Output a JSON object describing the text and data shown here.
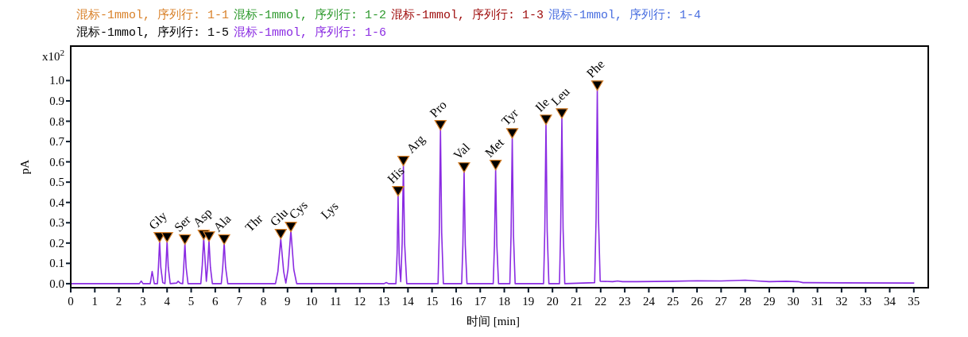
{
  "chart_data": {
    "type": "line",
    "xlabel": "时间 [min]",
    "ylabel": "pA",
    "xlim": [
      0,
      35.6
    ],
    "ylim": [
      -0.02,
      1.17
    ],
    "xticks": [
      0,
      1,
      2,
      3,
      4,
      5,
      6,
      7,
      8,
      9,
      10,
      11,
      12,
      13,
      14,
      15,
      16,
      17,
      18,
      19,
      20,
      21,
      22,
      23,
      24,
      25,
      26,
      27,
      28,
      29,
      30,
      31,
      32,
      33,
      34,
      35
    ],
    "yticks": [
      {
        "value": 0,
        "label": "0.0"
      },
      {
        "value": 0.1,
        "label": "0.1"
      },
      {
        "value": 0.2,
        "label": "0.2"
      },
      {
        "value": 0.3,
        "label": "0.3"
      },
      {
        "value": 0.4,
        "label": "0.4"
      },
      {
        "value": 0.5,
        "label": "0.5"
      },
      {
        "value": 0.6,
        "label": "0.6"
      },
      {
        "value": 0.7,
        "label": "0.7"
      },
      {
        "value": 0.8,
        "label": "0.8"
      },
      {
        "value": 0.9,
        "label": "0.9"
      },
      {
        "value": 1.0,
        "label": "1.0"
      }
    ],
    "legend": "top",
    "grid": false,
    "marker": "none",
    "line_style": "solid",
    "x": [
      0,
      2.5,
      2.85,
      2.93,
      3.0,
      3.3,
      3.38,
      3.47,
      3.6,
      3.64,
      3.69,
      3.74,
      3.82,
      3.91,
      3.95,
      4.0,
      4.05,
      4.13,
      4.4,
      4.46,
      4.55,
      4.65,
      4.69,
      4.74,
      4.79,
      4.87,
      5.4,
      5.46,
      5.52,
      5.6,
      5.63,
      5.68,
      5.74,
      5.8,
      5.88,
      6.25,
      6.31,
      6.37,
      6.43,
      6.52,
      8.5,
      8.6,
      8.72,
      8.84,
      8.93,
      9.02,
      9.14,
      9.26,
      9.38,
      13.0,
      13.1,
      13.2,
      13.5,
      13.55,
      13.59,
      13.64,
      13.7,
      13.76,
      13.81,
      13.86,
      13.95,
      15.25,
      15.3,
      15.35,
      15.4,
      15.47,
      16.23,
      16.28,
      16.33,
      16.38,
      16.45,
      17.54,
      17.59,
      17.64,
      17.69,
      17.76,
      18.23,
      18.28,
      18.33,
      18.38,
      18.45,
      19.63,
      19.68,
      19.73,
      19.78,
      19.85,
      20.29,
      20.34,
      20.39,
      20.44,
      20.51,
      21.75,
      21.81,
      21.86,
      21.91,
      21.98,
      22.5,
      22.7,
      22.9,
      23.5,
      25.0,
      26.0,
      27.0,
      28.0,
      28.5,
      29.0,
      29.7,
      30.2,
      30.4,
      32.0,
      35.0
    ],
    "series": [
      {
        "name": "混标-1mmol, 序列行: 1-1",
        "color": "#d9822b",
        "values": [
          null,
          null,
          null,
          null,
          null,
          null,
          null,
          null,
          null,
          null,
          null,
          null,
          null,
          null,
          null,
          null,
          null,
          null,
          null,
          null,
          null,
          null,
          null,
          null,
          null,
          null,
          null,
          null,
          null,
          null,
          null,
          null,
          null,
          null,
          null,
          null,
          null,
          null,
          null,
          null,
          null,
          null,
          null,
          null,
          null,
          null,
          null,
          null,
          null,
          null,
          null,
          null,
          null,
          null,
          null,
          null,
          null,
          null,
          null,
          null,
          null,
          null,
          null,
          null,
          null,
          null,
          null,
          null,
          null,
          null,
          null,
          null,
          null,
          null,
          null,
          null,
          null,
          null,
          null,
          null,
          null,
          null,
          null,
          null,
          null,
          null,
          null,
          null,
          null,
          null,
          null,
          null,
          null,
          null,
          null,
          null,
          null,
          null,
          null,
          null,
          null,
          null,
          null,
          null,
          null,
          null,
          null,
          null,
          null,
          null,
          null
        ]
      },
      {
        "name": "混标-1mmol, 序列行: 1-2",
        "color": "#2e9a2e",
        "values": [
          null,
          null,
          null,
          null,
          null,
          null,
          null,
          null,
          null,
          null,
          null,
          null,
          null,
          null,
          null,
          null,
          null,
          null,
          null,
          null,
          null,
          null,
          null,
          null,
          null,
          null,
          null,
          null,
          null,
          null,
          null,
          null,
          null,
          null,
          null,
          null,
          null,
          null,
          null,
          null,
          null,
          null,
          null,
          null,
          null,
          null,
          null,
          null,
          null,
          null,
          null,
          null,
          null,
          null,
          null,
          null,
          null,
          null,
          null,
          null,
          null,
          null,
          null,
          null,
          null,
          null,
          null,
          null,
          null,
          null,
          null,
          null,
          null,
          null,
          null,
          null,
          null,
          null,
          null,
          null,
          null,
          null,
          null,
          null,
          null,
          null,
          null,
          null,
          null,
          null,
          null,
          null,
          null,
          null,
          null,
          null,
          null,
          null,
          null,
          null,
          null,
          null,
          null,
          null,
          null,
          null,
          null,
          null,
          null,
          null,
          null
        ]
      },
      {
        "name": "混标-1mmol, 序列行: 1-3",
        "color": "#a01010",
        "values": [
          null,
          null,
          null,
          null,
          null,
          null,
          null,
          null,
          null,
          null,
          null,
          null,
          null,
          null,
          null,
          null,
          null,
          null,
          null,
          null,
          null,
          null,
          null,
          null,
          null,
          null,
          null,
          null,
          null,
          null,
          null,
          null,
          null,
          null,
          null,
          null,
          null,
          null,
          null,
          null,
          null,
          null,
          null,
          null,
          null,
          null,
          null,
          null,
          null,
          null,
          null,
          null,
          null,
          null,
          null,
          null,
          null,
          null,
          null,
          null,
          null,
          null,
          null,
          null,
          null,
          null,
          null,
          null,
          null,
          null,
          null,
          null,
          null,
          null,
          null,
          null,
          null,
          null,
          null,
          null,
          null,
          null,
          null,
          null,
          null,
          null,
          null,
          null,
          null,
          null,
          null,
          null,
          null,
          null,
          null,
          null,
          null,
          null,
          null,
          null,
          null,
          null,
          null,
          null,
          null,
          null,
          null,
          null,
          null,
          null,
          null
        ]
      },
      {
        "name": "混标-1mmol, 序列行: 1-4",
        "color": "#4a6fe0",
        "values": [
          null,
          null,
          null,
          null,
          null,
          null,
          null,
          null,
          null,
          null,
          null,
          null,
          null,
          null,
          null,
          null,
          null,
          null,
          null,
          null,
          null,
          null,
          null,
          null,
          null,
          null,
          null,
          null,
          null,
          null,
          null,
          null,
          null,
          null,
          null,
          null,
          null,
          null,
          null,
          null,
          null,
          null,
          null,
          null,
          null,
          null,
          null,
          null,
          null,
          null,
          null,
          null,
          null,
          null,
          null,
          null,
          null,
          null,
          null,
          null,
          null,
          null,
          null,
          null,
          null,
          null,
          null,
          null,
          null,
          null,
          null,
          null,
          null,
          null,
          null,
          null,
          null,
          null,
          null,
          null,
          null,
          null,
          null,
          null,
          null,
          null,
          null,
          null,
          null,
          null,
          null,
          null,
          null,
          null,
          null,
          null,
          null,
          null,
          null,
          null,
          null,
          null,
          null,
          null,
          null,
          null,
          null,
          null,
          null,
          null,
          null
        ]
      },
      {
        "name": "混标-1mmol, 序列行: 1-5",
        "color": "#000000",
        "values": [
          null,
          null,
          null,
          null,
          null,
          null,
          null,
          null,
          null,
          null,
          null,
          null,
          null,
          null,
          null,
          null,
          null,
          null,
          null,
          null,
          null,
          null,
          null,
          null,
          null,
          null,
          null,
          null,
          null,
          null,
          null,
          null,
          null,
          null,
          null,
          null,
          null,
          null,
          null,
          null,
          null,
          null,
          null,
          null,
          null,
          null,
          null,
          null,
          null,
          null,
          null,
          null,
          null,
          null,
          null,
          null,
          null,
          null,
          null,
          null,
          null,
          null,
          null,
          null,
          null,
          null,
          null,
          null,
          null,
          null,
          null,
          null,
          null,
          null,
          null,
          null,
          null,
          null,
          null,
          null,
          null,
          null,
          null,
          null,
          null,
          null,
          null,
          null,
          null,
          null,
          null,
          null,
          null,
          null,
          null,
          null,
          null,
          null,
          null,
          null,
          null,
          null,
          null,
          null,
          null,
          null,
          null,
          null,
          null,
          null,
          null
        ]
      },
      {
        "name": "混标-1mmol, 序列行: 1-6",
        "color": "#8a2be2",
        "values": [
          0,
          0,
          0,
          0.013,
          0,
          0,
          0.06,
          0,
          0,
          0.08,
          0.21,
          0.08,
          0.005,
          0,
          0.08,
          0.21,
          0.08,
          0,
          0.003,
          0.012,
          0.002,
          0,
          0.08,
          0.2,
          0.08,
          0,
          0,
          0.09,
          0.227,
          0.07,
          0.012,
          0.08,
          0.212,
          0.08,
          0,
          0,
          0.08,
          0.203,
          0.08,
          0,
          0,
          0.06,
          0.219,
          0.06,
          0.003,
          0.07,
          0.262,
          0.07,
          0,
          0,
          0.005,
          0,
          0,
          0.15,
          0.434,
          0.1,
          0.01,
          0.2,
          0.583,
          0.2,
          0,
          0,
          0.25,
          0.76,
          0.25,
          0,
          0,
          0.19,
          0.555,
          0.19,
          0,
          0,
          0.19,
          0.564,
          0.19,
          0,
          0,
          0.24,
          0.72,
          0.24,
          0,
          0,
          0.26,
          0.79,
          0.26,
          0,
          0,
          0.27,
          0.82,
          0.27,
          0,
          0.005,
          0.32,
          0.958,
          0.32,
          0.012,
          0.01,
          0.013,
          0.01,
          0.01,
          0.012,
          0.014,
          0.013,
          0.017,
          0.013,
          0.01,
          0.012,
          0.01,
          0.005,
          0.004,
          0.003
        ]
      },
      {
        "type": "scatter",
        "marker": "triangle",
        "color": "#000000",
        "x": [
          3.69,
          4.0,
          4.74,
          5.52,
          5.74,
          6.37,
          8.72,
          9.14,
          13.59,
          13.81,
          15.35,
          16.33,
          17.64,
          18.33,
          19.73,
          20.39,
          21.86
        ],
        "values": [
          0.228,
          0.228,
          0.217,
          0.24,
          0.232,
          0.217,
          0.244,
          0.279,
          0.455,
          0.604,
          0.78,
          0.572,
          0.584,
          0.74,
          0.807,
          0.838,
          0.975
        ]
      }
    ],
    "annotations": [
      "x10$^{2}$",
      {
        "text": "Gly",
        "x": 3.69,
        "y": 0.228
      },
      {
        "text": "Ser",
        "x": 4.74,
        "y": 0.217
      },
      {
        "text": "Asp",
        "x": 5.52,
        "y": 0.24
      },
      {
        "text": "Ala",
        "x": 6.37,
        "y": 0.217
      },
      "Thr",
      {
        "text": "Glu",
        "x": 8.72,
        "y": 0.244
      },
      {
        "text": "Cys",
        "x": 9.14,
        "y": 0.279
      },
      "Lys",
      {
        "text": "His",
        "x": 13.59,
        "y": 0.455
      },
      {
        "text": "Arg",
        "x": 13.81,
        "y": 0.604
      },
      {
        "text": "Pro",
        "x": 15.35,
        "y": 0.78
      },
      {
        "text": "Val",
        "x": 16.33,
        "y": 0.572
      },
      {
        "text": "Met",
        "x": 17.64,
        "y": 0.584
      },
      {
        "text": "Tyr",
        "x": 18.33,
        "y": 0.74
      },
      {
        "text": "Ile",
        "x": 19.73,
        "y": 0.807
      },
      {
        "text": "Leu",
        "x": 20.39,
        "y": 0.838
      },
      {
        "text": "Phe",
        "x": 21.86,
        "y": 0.975
      }
    ]
  }
}
